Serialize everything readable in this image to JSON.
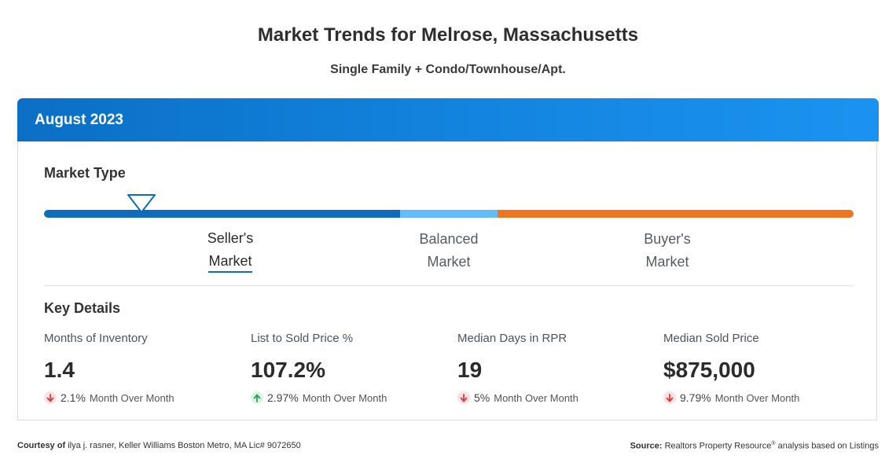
{
  "header": {
    "title": "Market Trends for Melrose, Massachusetts",
    "subtitle": "Single Family + Condo/Townhouse/Apt."
  },
  "card": {
    "period": "August 2023",
    "market_type": {
      "title": "Market Type",
      "indicator_position_fraction": 0.12,
      "segments": [
        {
          "name": "Seller's Market",
          "color": "#0f6cbd"
        },
        {
          "name": "Balanced Market",
          "color": "#64bcfb"
        },
        {
          "name": "Buyer's Market",
          "color": "#ee7620"
        }
      ],
      "labels": {
        "seller_line1": "Seller's",
        "seller_line2": "Market",
        "balanced_line1": "Balanced",
        "balanced_line2": "Market",
        "buyer_line1": "Buyer's",
        "buyer_line2": "Market"
      },
      "selected": "Seller's Market"
    },
    "key_details": {
      "title": "Key Details",
      "metrics": [
        {
          "label": "Months of Inventory",
          "value": "1.4",
          "change_pct": "2.1%",
          "direction": "down",
          "change_text": "Month Over Month"
        },
        {
          "label": "List to Sold Price %",
          "value": "107.2%",
          "change_pct": "2.97%",
          "direction": "up",
          "change_text": "Month Over Month"
        },
        {
          "label": "Median Days in RPR",
          "value": "19",
          "change_pct": "5%",
          "direction": "down",
          "change_text": "Month Over Month"
        },
        {
          "label": "Median Sold Price",
          "value": "$875,000",
          "change_pct": "9.79%",
          "direction": "down",
          "change_text": "Month Over Month"
        }
      ]
    }
  },
  "footer": {
    "courtesy_label": "Courtesy of",
    "courtesy_text": "ilya j. rasner, Keller Williams Boston Metro, MA Lic# 9072650",
    "source_label": "Source:",
    "source_text_1": "Realtors Property Resource",
    "source_sup": "®",
    "source_text_2": "analysis based on Listings"
  },
  "colors": {
    "header_blue": "#1385e0",
    "up": "#2e9e57",
    "down": "#d93a3a"
  },
  "icons": {
    "pointer": "triangle-down-marker",
    "down": "arrow-down-icon",
    "up": "arrow-up-icon"
  }
}
